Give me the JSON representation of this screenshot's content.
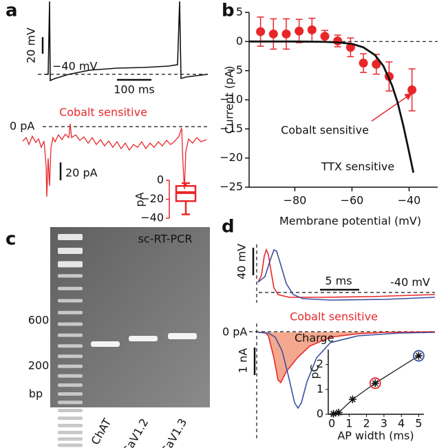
{
  "panels": {
    "a": {
      "letter": "a",
      "scale_v": "20 mV",
      "level": "−40 mV",
      "scale_t": "100 ms",
      "zero": "0 pA",
      "title": "Cobalt sensitive",
      "scale_i": "20 pA"
    },
    "b": {
      "letter": "b"
    },
    "c": {
      "letter": "c",
      "title": "sc-RT-PCR",
      "marker_600": "600",
      "marker_200": "200",
      "unit": "bp",
      "lanes": [
        "ChAT",
        "CaV1.2",
        "CaV1.3"
      ]
    },
    "d": {
      "letter": "d",
      "scale_v": "40 mV",
      "scale_t": "5 ms",
      "level": "-40 mV",
      "title": "Cobalt sensitive",
      "zero": "0 pA",
      "charge": "Charge",
      "scale_i": "1 nA"
    }
  },
  "chart_data": [
    {
      "type": "errorbar",
      "xlabel": "Membrane potential (mV)",
      "ylabel": "Current (pA)",
      "xlim": [
        -96,
        -30
      ],
      "xticks": [
        {
          "value": -80,
          "label": "−80"
        },
        {
          "value": -60,
          "label": "−60"
        },
        {
          "value": -40,
          "label": "−40"
        }
      ],
      "ylim": [
        -25,
        5
      ],
      "yticks": [
        {
          "value": -25,
          "label": "−25"
        },
        {
          "value": -20,
          "label": "−20"
        },
        {
          "value": -15,
          "label": "−15"
        },
        {
          "value": -10,
          "label": "−10"
        },
        {
          "value": -5,
          "label": "−5"
        },
        0,
        5
      ],
      "reference_line": 0,
      "series": [
        {
          "name": "Cobalt sensitive",
          "color": "#e8262a",
          "x": [
            -92,
            -87.5,
            -83,
            -78.5,
            -74,
            -69.5,
            -65,
            -60.5,
            -56,
            -51.5,
            -47,
            -39
          ],
          "values": [
            1.7,
            1.3,
            1.3,
            1.8,
            2.0,
            0.9,
            0.1,
            -1.0,
            -3.7,
            -3.9,
            -6.0,
            -8.3
          ],
          "errors": [
            2.5,
            2.6,
            2.6,
            2.0,
            2.0,
            1.0,
            1.0,
            1.6,
            1.6,
            1.7,
            2.5,
            3.6
          ]
        },
        {
          "name": "TTX sensitive",
          "color": "#111111",
          "x": [
            -96,
            -80,
            -70,
            -65,
            -60,
            -56,
            -52,
            -49,
            -46,
            -44,
            -42,
            -40,
            -38.5
          ],
          "values": [
            0,
            0,
            -0.05,
            -0.15,
            -0.4,
            -1.0,
            -2.3,
            -4.2,
            -7.5,
            -10.5,
            -14.5,
            -19,
            -22.5
          ]
        }
      ]
    },
    {
      "type": "box",
      "ylabel": "pA",
      "color": "#e8262a",
      "ylim": [
        -40,
        0
      ],
      "yticks": [
        0,
        {
          "value": -20,
          "label": "−20"
        },
        {
          "value": -40,
          "label": "−40"
        }
      ],
      "boxes": [
        {
          "min": -36,
          "q1": -22,
          "median": -13,
          "q3": -6,
          "max": -3
        }
      ]
    },
    {
      "type": "scatter",
      "xlabel": "AP width (ms)",
      "ylabel": "pC",
      "xlim": [
        -0.2,
        5.3
      ],
      "xticks": [
        0,
        1,
        2,
        3,
        4,
        5
      ],
      "ylim": [
        0,
        2.6
      ],
      "yticks": [
        0,
        1,
        2
      ],
      "x": [
        0.1,
        0.4,
        1.2,
        2.5,
        5.0
      ],
      "values": [
        0.02,
        0.07,
        0.6,
        1.25,
        2.35
      ],
      "point_colors": [
        "#111111",
        "#111111",
        "#111111",
        "#e8262a",
        "#3a4fa0"
      ]
    }
  ]
}
